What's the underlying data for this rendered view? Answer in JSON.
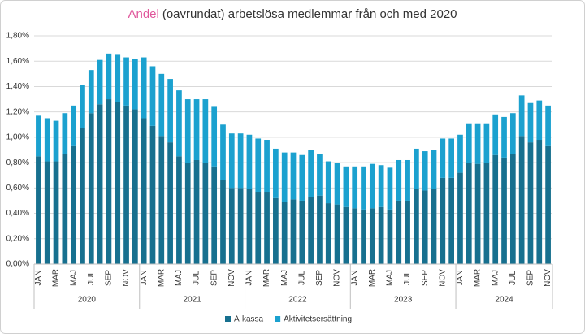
{
  "chart_data": {
    "type": "stacked-bar",
    "title_highlight": "Andel",
    "title_rest": "(oavrundat) arbetslösa medlemmar från och med 2020",
    "title_highlight_color": "#e0569b",
    "categories": [
      "JAN",
      null,
      "MAR",
      null,
      "MAJ",
      null,
      "JUL",
      null,
      "SEP",
      null,
      "NOV",
      null,
      "JAN",
      null,
      "MAR",
      null,
      "MAJ",
      null,
      "JUL",
      null,
      "SEP",
      null,
      "NOV",
      null,
      "JAN",
      null,
      "MAR",
      null,
      "MAJ",
      null,
      "JUL",
      null,
      "SEP",
      null,
      "NOV",
      null,
      "JAN",
      null,
      "MAR",
      null,
      "MAJ",
      null,
      "JUL",
      null,
      "SEP",
      null,
      "NOV",
      null,
      "JAN",
      null,
      "MAR",
      null,
      "MAJ",
      null,
      "JUL",
      null,
      "SEP",
      null,
      "NOV"
    ],
    "groups": [
      "2020",
      "2021",
      "2022",
      "2023",
      "2024"
    ],
    "series": [
      {
        "name": "A-kassa",
        "color": "#17708f",
        "values": [
          0.85,
          0.81,
          0.81,
          0.87,
          0.93,
          1.07,
          1.19,
          1.26,
          1.3,
          1.28,
          1.25,
          1.22,
          1.15,
          1.09,
          1.01,
          0.96,
          0.85,
          0.8,
          0.82,
          0.8,
          0.77,
          0.66,
          0.6,
          0.6,
          0.59,
          0.57,
          0.57,
          0.52,
          0.49,
          0.51,
          0.5,
          0.53,
          0.54,
          0.48,
          0.47,
          0.45,
          0.44,
          0.43,
          0.44,
          0.45,
          0.43,
          0.5,
          0.5,
          0.59,
          0.58,
          0.59,
          0.68,
          0.68,
          0.72,
          0.8,
          0.79,
          0.8,
          0.86,
          0.84,
          0.87,
          1.01,
          0.96,
          0.98,
          0.93
        ]
      },
      {
        "name": "Aktivitetsersättning",
        "color": "#1ba1cf",
        "values": [
          0.32,
          0.34,
          0.32,
          0.32,
          0.32,
          0.34,
          0.34,
          0.35,
          0.36,
          0.37,
          0.38,
          0.4,
          0.48,
          0.47,
          0.49,
          0.5,
          0.52,
          0.5,
          0.48,
          0.5,
          0.47,
          0.44,
          0.43,
          0.43,
          0.43,
          0.42,
          0.41,
          0.39,
          0.39,
          0.37,
          0.36,
          0.37,
          0.33,
          0.33,
          0.33,
          0.32,
          0.33,
          0.34,
          0.35,
          0.33,
          0.33,
          0.32,
          0.32,
          0.32,
          0.31,
          0.31,
          0.31,
          0.31,
          0.3,
          0.31,
          0.32,
          0.31,
          0.32,
          0.32,
          0.32,
          0.32,
          0.31,
          0.31,
          0.32
        ]
      }
    ],
    "ylim": [
      0,
      1.8
    ],
    "yticks": [
      {
        "value": 0,
        "label": "0,00%"
      },
      {
        "value": 0.2,
        "label": "0,20%"
      },
      {
        "value": 0.4,
        "label": "0,40%"
      },
      {
        "value": 0.6,
        "label": "0,60%"
      },
      {
        "value": 0.8,
        "label": "0,80%"
      },
      {
        "value": 1.0,
        "label": "1,00%"
      },
      {
        "value": 1.2,
        "label": "1,20%"
      },
      {
        "value": 1.4,
        "label": "1,40%"
      },
      {
        "value": 1.6,
        "label": "1,60%"
      },
      {
        "value": 1.8,
        "label": "1,80%"
      }
    ],
    "grid": true
  }
}
